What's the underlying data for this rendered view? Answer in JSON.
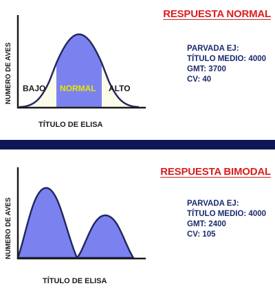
{
  "top": {
    "title": "RESPUESTA NORMAL",
    "y_label": "NUMERO DE AVES",
    "x_label": "TÍTULO DE ELISA",
    "region_labels": {
      "low": "BAJO",
      "mid": "NORMAL",
      "high": "ALTO"
    },
    "info": {
      "flock": "PARVADA EJ:",
      "mean_titer": "TÍTULO MEDIO: 4000",
      "gmt": "GMT: 3700",
      "cv": "CV: 40"
    }
  },
  "bottom": {
    "title": "RESPUESTA BIMODAL",
    "y_label": "NUMERO DE AVES",
    "x_label": "TÍTULO DE ELISA",
    "info": {
      "flock": "PARVADA EJ:",
      "mean_titer": "TÍTULO MEDIO: 4000",
      "gmt": "GMT: 2400",
      "cv": "CV: 105"
    }
  },
  "colors": {
    "curve_fill": "#7b82f0",
    "curve_stroke": "#22285f",
    "tail_fill": "#fbfbea",
    "title_red": "#d81e1e",
    "info_blue": "#1a2a6c",
    "divider": "#0f1657",
    "normal_label": "#e6e600"
  }
}
